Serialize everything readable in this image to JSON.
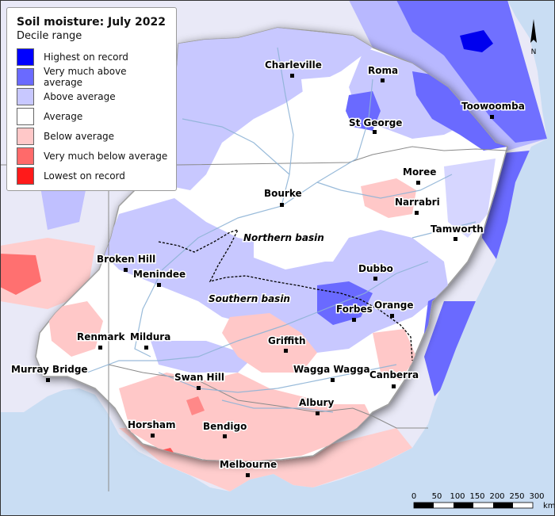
{
  "legend": {
    "title": "Soil moisture: July 2022",
    "subtitle": "Decile range",
    "items": [
      {
        "label": "Highest on record",
        "color": "#0000ff"
      },
      {
        "label": "Very much above average",
        "color": "#6a6aff"
      },
      {
        "label": "Above average",
        "color": "#c8c8ff"
      },
      {
        "label": "Average",
        "color": "#ffffff"
      },
      {
        "label": "Below average",
        "color": "#ffc8c8"
      },
      {
        "label": "Very much below average",
        "color": "#ff6a6a"
      },
      {
        "label": "Lowest on record",
        "color": "#ff1a1a"
      }
    ]
  },
  "towns": [
    {
      "name": "Charleville"
    },
    {
      "name": "Roma"
    },
    {
      "name": "Toowoomba"
    },
    {
      "name": "St George"
    },
    {
      "name": "Moree"
    },
    {
      "name": "Narrabri"
    },
    {
      "name": "Bourke"
    },
    {
      "name": "Tamworth"
    },
    {
      "name": "Broken Hill"
    },
    {
      "name": "Menindee"
    },
    {
      "name": "Dubbo"
    },
    {
      "name": "Orange"
    },
    {
      "name": "Forbes"
    },
    {
      "name": "Renmark"
    },
    {
      "name": "Mildura"
    },
    {
      "name": "Griffith"
    },
    {
      "name": "Murray Bridge"
    },
    {
      "name": "Wagga Wagga"
    },
    {
      "name": "Canberra"
    },
    {
      "name": "Swan Hill"
    },
    {
      "name": "Albury"
    },
    {
      "name": "Horsham"
    },
    {
      "name": "Bendigo"
    },
    {
      "name": "Melbourne"
    }
  ],
  "basins": [
    {
      "name": "Northern basin"
    },
    {
      "name": "Southern basin"
    }
  ],
  "scale_bar": {
    "ticks": [
      "0",
      "50",
      "100",
      "150",
      "200",
      "250",
      "300"
    ],
    "unit": "km"
  },
  "north_arrow": {
    "label": "N",
    "icon": "north-arrow-icon"
  },
  "colors": {
    "ocean": "#c9ddf3",
    "river": "#8fb4d6",
    "border": "#7a7a7a",
    "basin_boundary": "#000000"
  }
}
